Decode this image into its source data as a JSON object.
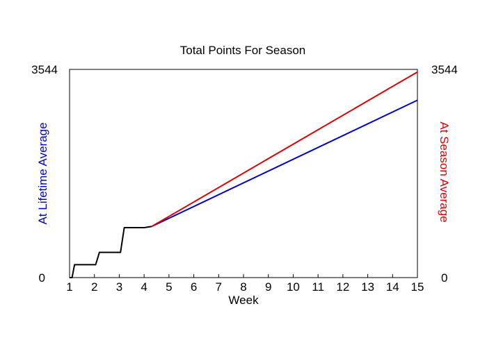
{
  "chart_data": {
    "type": "line",
    "title": "Total Points For Season",
    "xlabel": "Week",
    "ylabel_left": "At Lifetime Average",
    "ylabel_right": "At Season Average",
    "xlim": [
      1,
      15
    ],
    "ylim": [
      0,
      3544
    ],
    "x_ticks": [
      "1",
      "2",
      "3",
      "4",
      "5",
      "6",
      "7",
      "8",
      "9",
      "10",
      "11",
      "12",
      "13",
      "14",
      "15"
    ],
    "y_ticks_left": [
      "0",
      "3544"
    ],
    "y_ticks_right": [
      "0",
      "3544"
    ],
    "colors": {
      "actual": "#000000",
      "lifetime": "#0000cc",
      "season": "#dd0000"
    },
    "series": [
      {
        "key": "actual",
        "x": [
          1.0,
          1.1,
          1.2,
          2.05,
          2.2,
          3.05,
          3.2,
          4.0,
          4.3
        ],
        "y": [
          0,
          0,
          220,
          220,
          430,
          430,
          850,
          850,
          870
        ]
      },
      {
        "key": "lifetime",
        "x": [
          4.3,
          15.0
        ],
        "y": [
          870,
          3020
        ]
      },
      {
        "key": "season",
        "x": [
          4.3,
          15.0
        ],
        "y": [
          870,
          3500
        ]
      }
    ]
  }
}
